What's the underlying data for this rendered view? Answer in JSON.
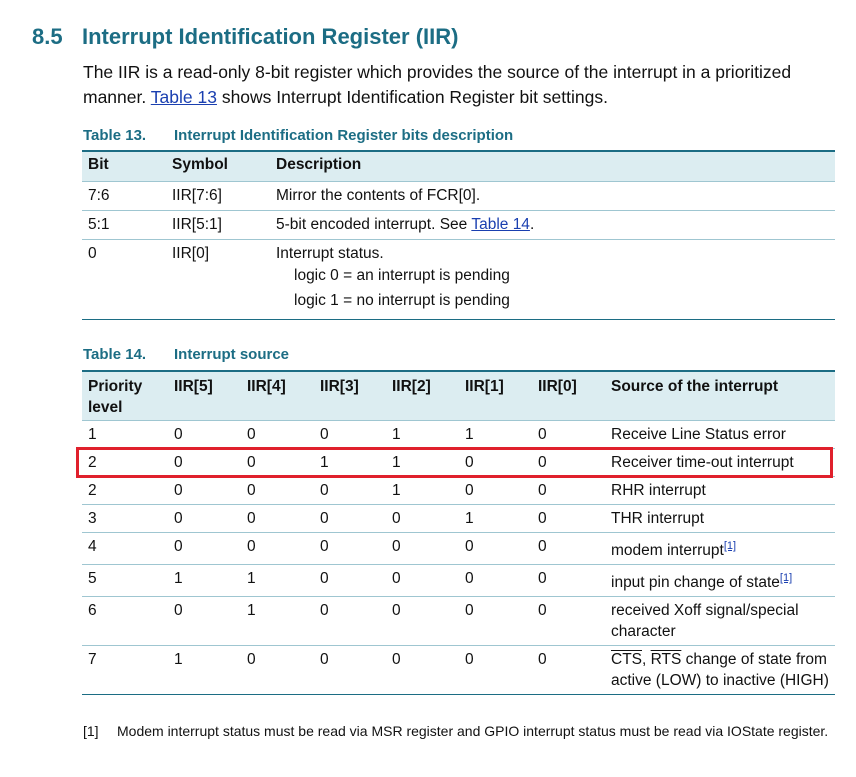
{
  "section": {
    "number": "8.5",
    "title": "Interrupt Identification Register (IIR)",
    "intro_part1": "The IIR is a read-only 8-bit register which provides the source of the interrupt in a prioritized manner. ",
    "intro_link": "Table 13",
    "intro_part2": " shows Interrupt Identification Register bit settings."
  },
  "table13": {
    "caption_number": "Table 13.",
    "caption_title": "Interrupt Identification Register bits description",
    "headers": [
      "Bit",
      "Symbol",
      "Description"
    ],
    "rows": [
      {
        "bit": "7:6",
        "symbol": "IIR[7:6]",
        "description": "Mirror the contents of FCR[0]."
      },
      {
        "bit": "5:1",
        "symbol": "IIR[5:1]",
        "description_pre": "5-bit encoded interrupt. See ",
        "description_link": "Table 14",
        "description_post": "."
      },
      {
        "bit": "0",
        "symbol": "IIR[0]",
        "description": "Interrupt status.",
        "sub1": "logic 0 = an interrupt is pending",
        "sub2": "logic 1 = no interrupt is pending"
      }
    ]
  },
  "table14": {
    "caption_number": "Table 14.",
    "caption_title": "Interrupt source",
    "headers": [
      "Priority level",
      "IIR[5]",
      "IIR[4]",
      "IIR[3]",
      "IIR[2]",
      "IIR[1]",
      "IIR[0]",
      "Source of the interrupt"
    ],
    "rows": [
      {
        "cells": [
          "1",
          "0",
          "0",
          "0",
          "1",
          "1",
          "0"
        ],
        "source": "Receive Line Status error"
      },
      {
        "cells": [
          "2",
          "0",
          "0",
          "1",
          "1",
          "0",
          "0"
        ],
        "source": "Receiver time-out interrupt",
        "highlighted": true
      },
      {
        "cells": [
          "2",
          "0",
          "0",
          "0",
          "1",
          "0",
          "0"
        ],
        "source": "RHR interrupt"
      },
      {
        "cells": [
          "3",
          "0",
          "0",
          "0",
          "0",
          "1",
          "0"
        ],
        "source": "THR interrupt"
      },
      {
        "cells": [
          "4",
          "0",
          "0",
          "0",
          "0",
          "0",
          "0"
        ],
        "source": "modem interrupt",
        "footnote": "[1]"
      },
      {
        "cells": [
          "5",
          "1",
          "1",
          "0",
          "0",
          "0",
          "0"
        ],
        "source": "input pin change of state",
        "footnote": "[1]"
      },
      {
        "cells": [
          "6",
          "0",
          "1",
          "0",
          "0",
          "0",
          "0"
        ],
        "source": "received Xoff signal/special character"
      },
      {
        "cells": [
          "7",
          "1",
          "0",
          "0",
          "0",
          "0",
          "0"
        ],
        "source_cts": "CTS",
        "source_sep": ", ",
        "source_rts": "RTS",
        "source_rest": " change of state from active (LOW) to inactive (HIGH)"
      }
    ]
  },
  "footnote": {
    "marker": "[1]",
    "text": "Modem interrupt status must be read via MSR register and GPIO interrupt status must be read via IOState register."
  },
  "colors": {
    "heading": "#1c6d84",
    "header_bg": "#dcedf1",
    "highlight": "#e0202c",
    "link": "#1a3fb0"
  }
}
